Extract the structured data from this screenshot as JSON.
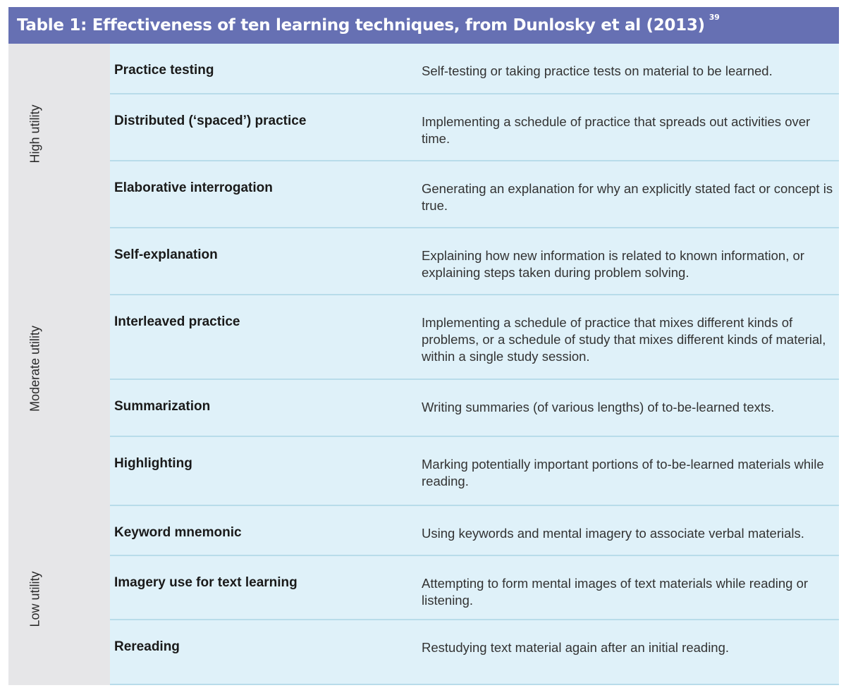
{
  "table": {
    "title": "Table 1: Effectiveness of ten learning techniques, from Dunlosky et al (2013)",
    "footnote": "39",
    "groups": [
      {
        "label": "High utility"
      },
      {
        "label": "Moderate utility"
      },
      {
        "label": "Low utility"
      }
    ],
    "rows": [
      {
        "technique": "Practice testing",
        "description": "Self-testing or taking practice tests on material to be learned."
      },
      {
        "technique": "Distributed (‘spaced’) practice",
        "description": "Implementing a schedule of practice that spreads out activities over time."
      },
      {
        "technique": "Elaborative interrogation",
        "description": "Generating an explanation for why an explicitly stated fact or concept is true."
      },
      {
        "technique": "Self-explanation",
        "description": "Explaining how new information is related to known information, or explaining steps taken during problem solving."
      },
      {
        "technique": "Interleaved practice",
        "description": "Implementing a schedule of practice that mixes different kinds of problems, or a schedule of study that mixes different kinds of material, within a single study session."
      },
      {
        "technique": "Summarization",
        "description": "Writing summaries (of various lengths) of to-be-learned texts."
      },
      {
        "technique": "Highlighting",
        "description": "Marking potentially important portions of to-be-learned materials while reading."
      },
      {
        "technique": "Keyword mnemonic",
        "description": "Using keywords and mental imagery to associate verbal materials."
      },
      {
        "technique": "Imagery use for text learning",
        "description": "Attempting to form mental images of text materials while reading or listening."
      },
      {
        "technique": "Rereading",
        "description": "Restudying text material again after an initial reading."
      }
    ]
  }
}
